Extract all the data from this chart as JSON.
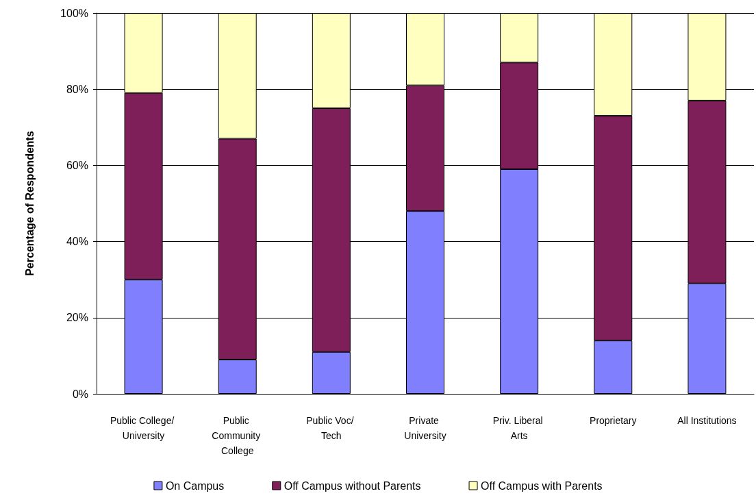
{
  "chart_data": {
    "type": "bar",
    "stacked": true,
    "ylabel": "Percentage of Respondents",
    "categories": [
      "Public College/ University",
      "Public Community College",
      "Public Voc/ Tech",
      "Private University",
      "Priv. Liberal Arts",
      "Proprietary",
      "All Institutions"
    ],
    "series": [
      {
        "name": "On Campus",
        "color": "#8080ff",
        "values": [
          30,
          9,
          11,
          48,
          59,
          14,
          29
        ]
      },
      {
        "name": "Off Campus without Parents",
        "color": "#7f1f5a",
        "values": [
          49,
          58,
          64,
          33,
          28,
          59,
          48
        ]
      },
      {
        "name": "Off Campus with Parents",
        "color": "#ffffc0",
        "values": [
          21,
          33,
          25,
          19,
          13,
          27,
          23
        ]
      }
    ],
    "ylim": [
      0,
      100
    ],
    "yticks": [
      {
        "value": 0,
        "label": "0%"
      },
      {
        "value": 20,
        "label": "20%"
      },
      {
        "value": 40,
        "label": "40%"
      },
      {
        "value": 60,
        "label": "60%"
      },
      {
        "value": 80,
        "label": "80%"
      },
      {
        "value": 100,
        "label": "100%"
      }
    ],
    "grid": "y",
    "legend": "bottom"
  }
}
